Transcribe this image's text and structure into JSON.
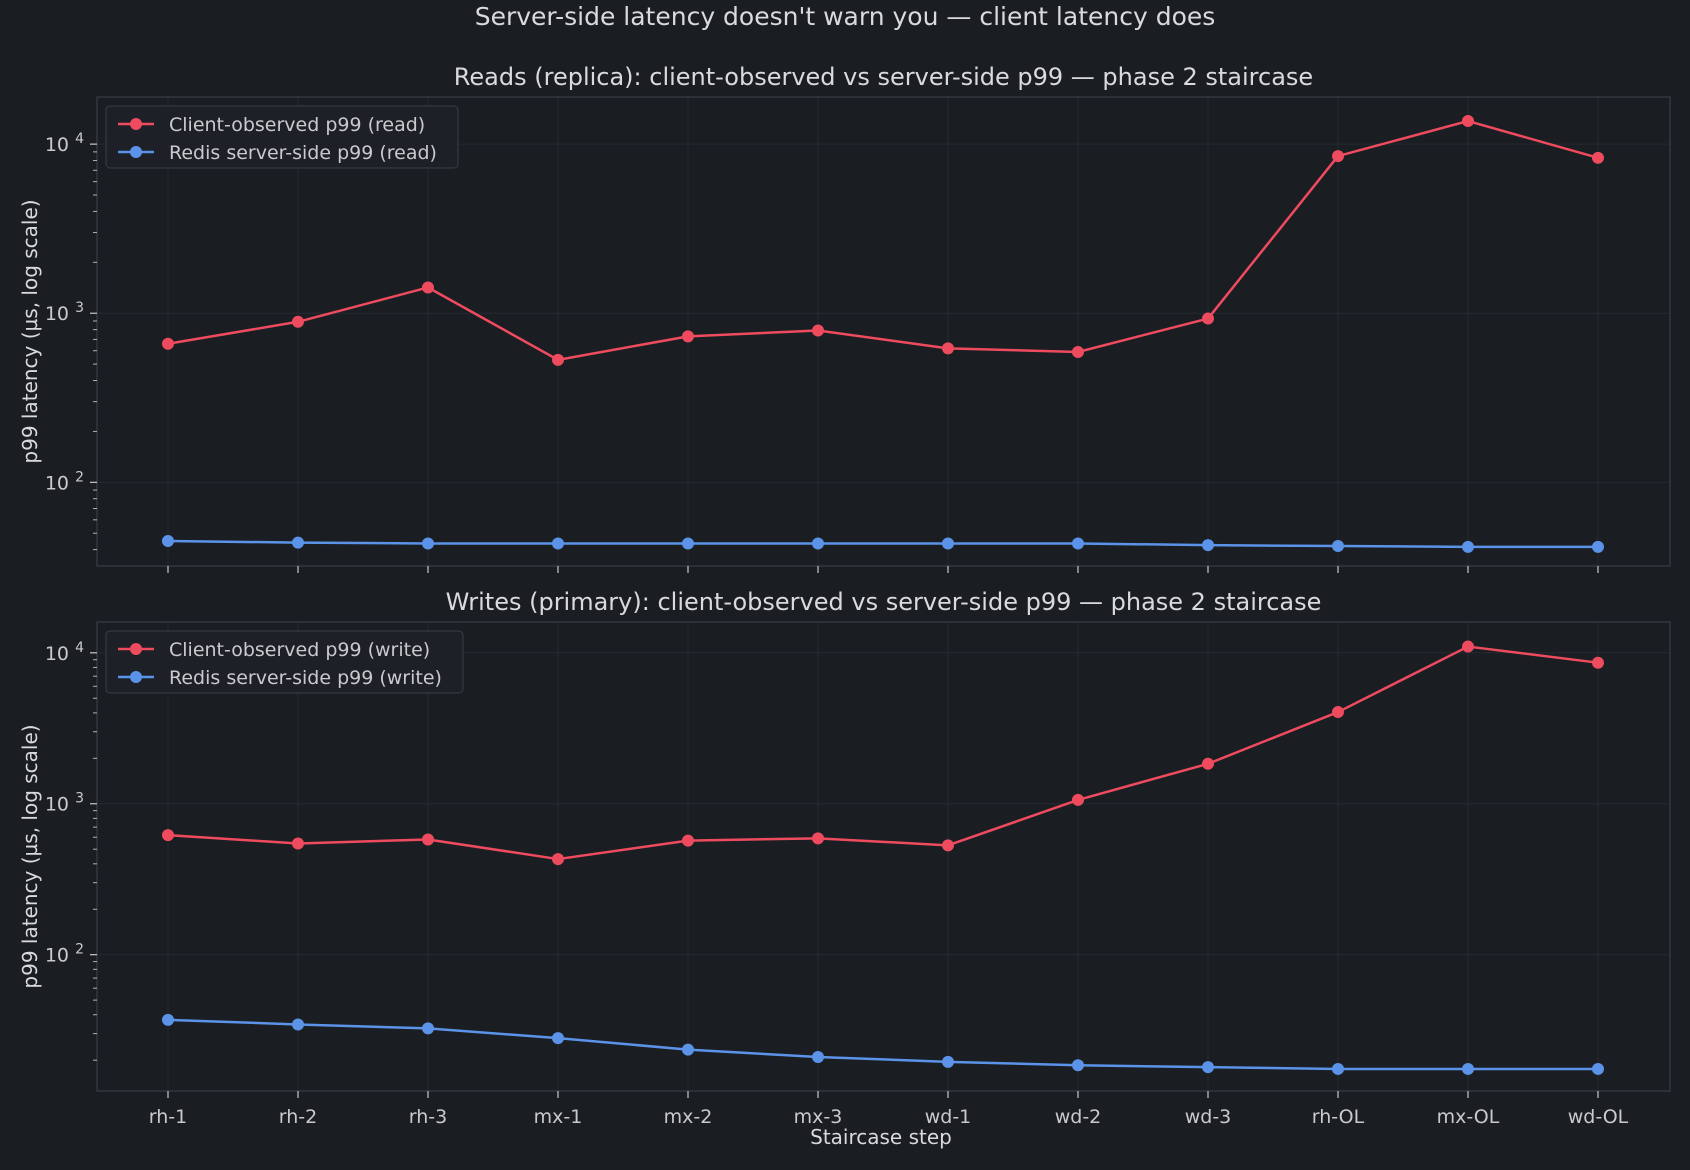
{
  "figure": {
    "suptitle": "Server-side latency doesn't warn you — client latency does",
    "xlabel": "Staircase step",
    "colors": {
      "background": "#1a1d22",
      "axes_face": "#1a1d22",
      "spine": "#3a3e45",
      "grid": "#262a30",
      "text": "#d9dadc",
      "client": "#ee4b5f",
      "server": "#5b93e8"
    }
  },
  "chart_data": [
    {
      "type": "line",
      "title": "Reads (replica): client-observed vs server-side p99 — phase 2 staircase",
      "ylabel": "p99 latency (µs, log scale)",
      "yscale": "log",
      "ylim": [
        32,
        19000
      ],
      "yticks": [
        {
          "value": 100,
          "mant": "10",
          "exp": "2"
        },
        {
          "value": 1000,
          "mant": "10",
          "exp": "3"
        },
        {
          "value": 10000,
          "mant": "10",
          "exp": "4"
        }
      ],
      "categories": [
        "rh-1",
        "rh-2",
        "rh-3",
        "mx-1",
        "mx-2",
        "mx-3",
        "wd-1",
        "wd-2",
        "wd-3",
        "rh-OL",
        "mx-OL",
        "wd-OL"
      ],
      "show_tick_labels": false,
      "grid": true,
      "legend": "top-left",
      "series": [
        {
          "name": "Client-observed p99 (read)",
          "color": "#ee4b5f",
          "values": [
            660,
            890,
            1420,
            530,
            730,
            790,
            620,
            590,
            930,
            8500,
            13700,
            8300
          ]
        },
        {
          "name": "Redis server-side p99 (read)",
          "color": "#5b93e8",
          "values": [
            45,
            44,
            43.5,
            43.5,
            43.5,
            43.5,
            43.5,
            43.5,
            42.5,
            42,
            41.5,
            41.5
          ]
        }
      ]
    },
    {
      "type": "line",
      "title": "Writes (primary): client-observed vs server-side p99 — phase 2 staircase",
      "ylabel": "p99 latency (µs, log scale)",
      "yscale": "log",
      "ylim": [
        12.5,
        16000
      ],
      "yticks": [
        {
          "value": 100,
          "mant": "10",
          "exp": "2"
        },
        {
          "value": 1000,
          "mant": "10",
          "exp": "3"
        },
        {
          "value": 10000,
          "mant": "10",
          "exp": "4"
        }
      ],
      "categories": [
        "rh-1",
        "rh-2",
        "rh-3",
        "mx-1",
        "mx-2",
        "mx-3",
        "wd-1",
        "wd-2",
        "wd-3",
        "rh-OL",
        "mx-OL",
        "wd-OL"
      ],
      "show_tick_labels": true,
      "grid": true,
      "legend": "top-left",
      "series": [
        {
          "name": "Client-observed p99 (write)",
          "color": "#ee4b5f",
          "values": [
            620,
            545,
            580,
            430,
            570,
            590,
            530,
            1060,
            1840,
            4050,
            11000,
            8600
          ]
        },
        {
          "name": "Redis server-side p99 (write)",
          "color": "#5b93e8",
          "values": [
            37,
            34.5,
            32.5,
            28,
            23.5,
            21,
            19.5,
            18.5,
            18,
            17.5,
            17.5,
            17.5
          ]
        }
      ]
    }
  ]
}
